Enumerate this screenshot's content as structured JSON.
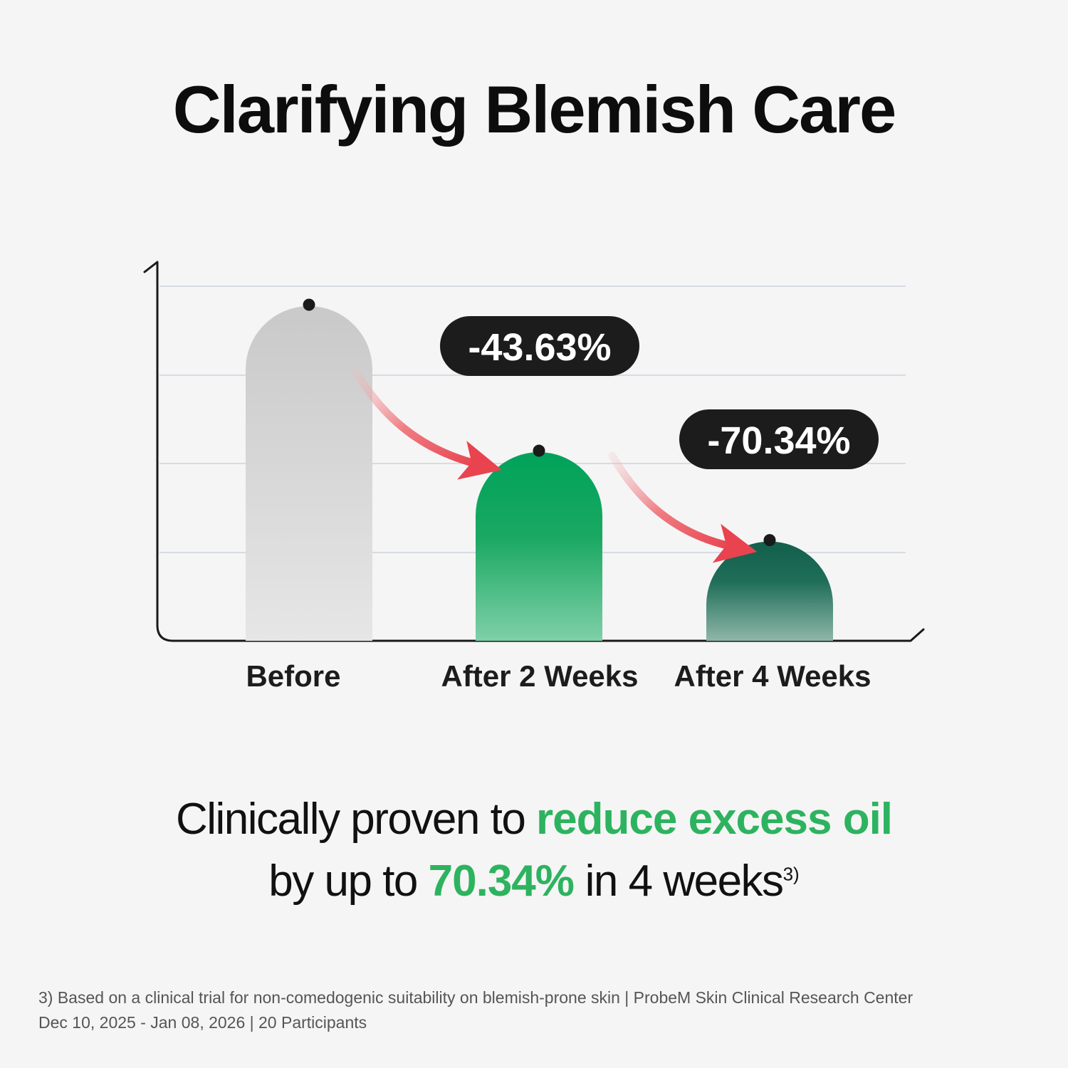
{
  "title": "Clarifying Blemish Care",
  "colors": {
    "accent": "#2db35f",
    "before_bar": "#cfcfcf",
    "week2_bar": "#00a25a",
    "week4_bar": "#16634f",
    "arrow": "#e8505a",
    "badge": "#1c1c1c"
  },
  "chart_data": {
    "type": "bar",
    "categories": [
      "Before",
      "After 2 Weeks",
      "After 4 Weeks"
    ],
    "values": [
      100,
      56.37,
      29.66
    ],
    "annotations": [
      {
        "category": "After 2 Weeks",
        "label": "-43.63%"
      },
      {
        "category": "After 4 Weeks",
        "label": "-70.34%"
      }
    ],
    "ylim": [
      0,
      118
    ],
    "grid": true,
    "title": "",
    "xlabel": "",
    "ylabel": ""
  },
  "claim": {
    "line1_prefix": "Clinically proven to ",
    "line1_highlight": "reduce excess oil",
    "line2_prefix": "by up to ",
    "line2_highlight": "70.34%",
    "line2_suffix": " in 4 weeks",
    "footnote_ref": "3)"
  },
  "footnote": {
    "line1": "3) Based on a clinical trial for non-comedogenic suitability on blemish-prone skin | ProbeM Skin Clinical Research Center",
    "line2": "Dec 10, 2025 - Jan 08, 2026 | 20 Participants"
  }
}
